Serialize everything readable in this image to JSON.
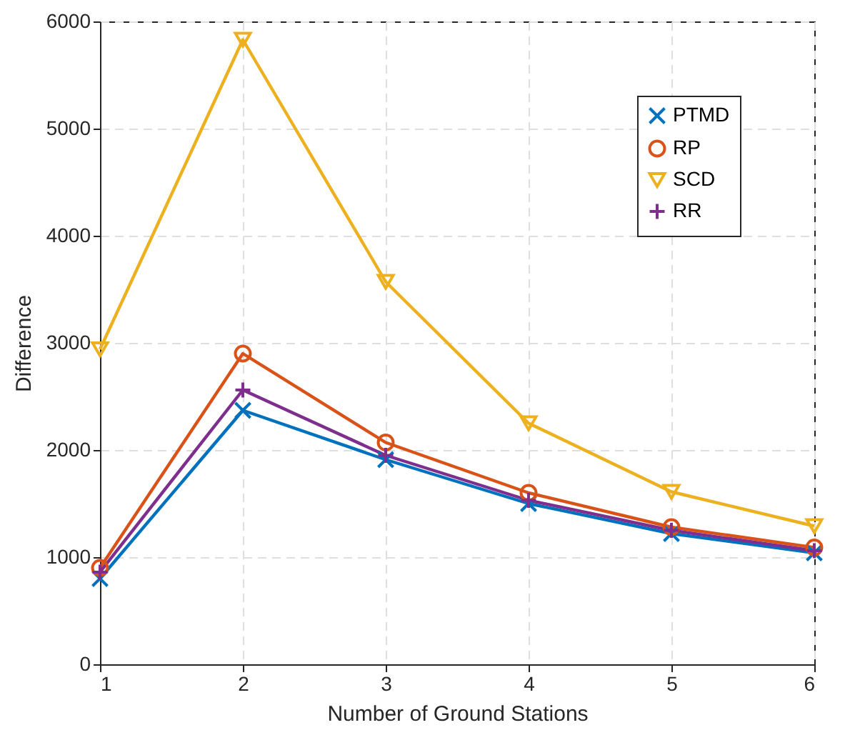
{
  "chart_data": {
    "type": "line",
    "xlabel": "Number of Ground Stations",
    "ylabel": "Difference",
    "x": [
      1,
      2,
      3,
      4,
      5,
      6
    ],
    "series": [
      {
        "name": "PTMD",
        "color": "#0072bd",
        "marker": "x",
        "values": [
          800,
          2370,
          1910,
          1500,
          1220,
          1040
        ]
      },
      {
        "name": "RP",
        "color": "#d95319",
        "marker": "circle",
        "values": [
          900,
          2900,
          2070,
          1600,
          1280,
          1090
        ]
      },
      {
        "name": "SCD",
        "color": "#edb120",
        "marker": "triangle-down",
        "values": [
          2940,
          5830,
          3570,
          2250,
          1610,
          1290
        ]
      },
      {
        "name": "RR",
        "color": "#7e2f8e",
        "marker": "plus",
        "values": [
          860,
          2560,
          1950,
          1530,
          1250,
          1060
        ]
      }
    ],
    "xlim": [
      1,
      6
    ],
    "xticks": [
      1,
      2,
      3,
      4,
      5,
      6
    ],
    "ylim": [
      0,
      6000
    ],
    "yticks": [
      0,
      1000,
      2000,
      3000,
      4000,
      5000,
      6000
    ],
    "grid": true,
    "legend": "top right",
    "line_style": "solid"
  }
}
